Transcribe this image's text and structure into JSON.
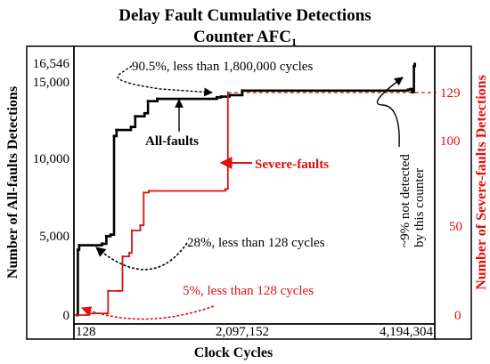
{
  "chart_data": {
    "type": "line",
    "title_main": "Delay Fault Cumulative Detections",
    "title_line2": "Counter AFC",
    "title_subscript": "1",
    "xlabel": "Clock Cycles",
    "ylabel_left": "Number of All-faults Detections",
    "ylabel_right": "Number of Severe-faults Detections",
    "x_ticks": [
      "128",
      "2,097,152",
      "4,194,304"
    ],
    "y_left_ticks": [
      "16,546",
      "15,000",
      "10,000",
      "5,000",
      "0"
    ],
    "y_left_ticks_values": [
      16546,
      15000,
      10000,
      5000,
      0
    ],
    "y_right_ticks": [
      "129",
      "100",
      "50",
      "0"
    ],
    "y_right_ticks_values": [
      129,
      100,
      50,
      0
    ],
    "xlim": [
      0,
      4194304
    ],
    "ylim_left": [
      0,
      16546
    ],
    "ylim_right": [
      0,
      180
    ],
    "colors": {
      "all": "#000000",
      "severe": "#e01010"
    },
    "series": [
      {
        "name": "All-faults",
        "axis": "left",
        "points": [
          [
            0,
            0
          ],
          [
            15000,
            4300
          ],
          [
            30000,
            4600
          ],
          [
            300000,
            4700
          ],
          [
            350000,
            5200
          ],
          [
            400000,
            5300
          ],
          [
            440000,
            11800
          ],
          [
            470000,
            12200
          ],
          [
            640000,
            12400
          ],
          [
            690000,
            13100
          ],
          [
            800000,
            13300
          ],
          [
            840000,
            14100
          ],
          [
            950000,
            14250
          ],
          [
            1650000,
            14350
          ],
          [
            1700000,
            14400
          ],
          [
            1800000,
            14500
          ],
          [
            1950000,
            14800
          ],
          [
            3900000,
            14850
          ],
          [
            3930000,
            14900
          ],
          [
            3950000,
            14700
          ],
          [
            3970000,
            16400
          ],
          [
            3980000,
            16546
          ]
        ]
      },
      {
        "name": "Severe-faults",
        "axis": "right",
        "points": [
          [
            0,
            0
          ],
          [
            150000,
            1
          ],
          [
            360000,
            1
          ],
          [
            370000,
            14
          ],
          [
            500000,
            14
          ],
          [
            540000,
            34
          ],
          [
            620000,
            36
          ],
          [
            650000,
            49
          ],
          [
            750000,
            52
          ],
          [
            790000,
            71
          ],
          [
            850000,
            72
          ],
          [
            1750000,
            73
          ],
          [
            1780000,
            129
          ]
        ]
      }
    ],
    "dashed_level_right": 129,
    "annotations": [
      {
        "text": "90.5%, less than 1,800,000 cycles",
        "color": "#000000"
      },
      {
        "text": "All-faults",
        "color": "#000000",
        "bold": true
      },
      {
        "text": "Severe-faults",
        "color": "#e01010",
        "bold": true
      },
      {
        "text": "28%, less than 128 cycles",
        "color": "#000000"
      },
      {
        "text": "5%, less than 128 cycles",
        "color": "#e01010"
      },
      {
        "text": "~9% not detected",
        "color": "#000000"
      },
      {
        "text": "by this counter",
        "color": "#000000"
      }
    ]
  }
}
